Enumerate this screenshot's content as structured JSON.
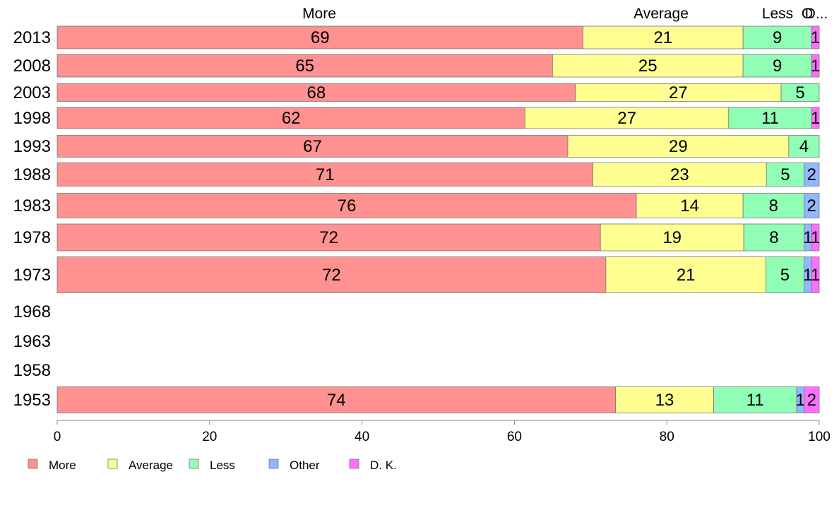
{
  "chart_data": {
    "type": "bar",
    "orientation": "horizontal",
    "stacked": true,
    "title": "",
    "xlabel": "",
    "ylabel": "",
    "xlim": [
      0,
      100
    ],
    "x_ticks": [
      "0",
      "20",
      "40",
      "60",
      "80",
      "100"
    ],
    "top_labels": [
      "More",
      "Average",
      "Less",
      "O",
      "D..."
    ],
    "categories": [
      "2013",
      "2008",
      "2003",
      "1998",
      "1993",
      "1988",
      "1983",
      "1978",
      "1973",
      "1968",
      "1963",
      "1958",
      "1953"
    ],
    "series": [
      {
        "name": "More",
        "color": "#FF9190",
        "values": [
          69,
          65,
          68,
          62,
          67,
          71,
          76,
          72,
          72,
          null,
          null,
          null,
          74
        ]
      },
      {
        "name": "Average",
        "color": "#FFFF91",
        "values": [
          21,
          25,
          27,
          27,
          29,
          23,
          14,
          19,
          21,
          null,
          null,
          null,
          13
        ]
      },
      {
        "name": "Less",
        "color": "#90FFB5",
        "values": [
          9,
          9,
          5,
          11,
          4,
          5,
          8,
          8,
          5,
          null,
          null,
          null,
          11
        ]
      },
      {
        "name": "Other",
        "color": "#92B6FF",
        "values": [
          0,
          0,
          0,
          0,
          0,
          2,
          2,
          1,
          1,
          null,
          null,
          null,
          1
        ]
      },
      {
        "name": "D. K.",
        "color": "#FF6EFF",
        "values": [
          1,
          1,
          0,
          1,
          0,
          0,
          0,
          1,
          1,
          null,
          null,
          null,
          2
        ]
      }
    ],
    "legend": {
      "position": "bottom-left",
      "entries": [
        "More",
        "Average",
        "Less",
        "Other",
        "D. K."
      ]
    },
    "grid": false
  }
}
